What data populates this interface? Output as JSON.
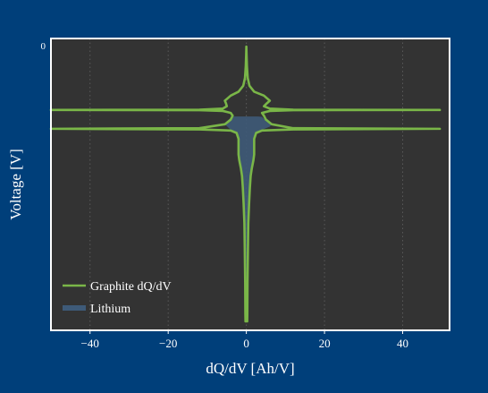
{
  "chart_data": {
    "type": "line",
    "title": "",
    "xlabel": "dQ/dV [Ah/V]",
    "ylabel": "Voltage [V]",
    "xlim": [
      -50,
      52
    ],
    "ylim": [
      0.7,
      0
    ],
    "x_ticks": [
      -40,
      -20,
      0,
      20,
      40
    ],
    "x_tick_labels": [
      "−40",
      "−20",
      "0",
      "20",
      "40"
    ],
    "y_ticks": [
      0
    ],
    "y_tick_labels": [
      "0"
    ],
    "grid": true,
    "legend_position": "lower-left",
    "colors": {
      "background": "#003f7a",
      "plot_area": "#333333",
      "frame": "#ffffff",
      "graphite": "#7ab648",
      "lithium": "#3e5a78",
      "grid": "#5a5a5a"
    },
    "series": [
      {
        "name": "Graphite dQ/dV",
        "kind": "line",
        "points": [
          [
            0,
            0.0
          ],
          [
            0.05,
            0.02
          ],
          [
            0.15,
            0.05
          ],
          [
            0.35,
            0.08
          ],
          [
            0.8,
            0.1
          ],
          [
            2,
            0.115
          ],
          [
            4.5,
            0.125
          ],
          [
            6,
            0.138
          ],
          [
            5.2,
            0.145
          ],
          [
            4.5,
            0.152
          ],
          [
            6,
            0.158
          ],
          [
            12,
            0.161
          ],
          [
            49.5,
            0.1615
          ],
          [
            12,
            0.162
          ],
          [
            6,
            0.164
          ],
          [
            4,
            0.169
          ],
          [
            4.5,
            0.176
          ],
          [
            5,
            0.186
          ],
          [
            6.5,
            0.198
          ],
          [
            12,
            0.208
          ],
          [
            49.5,
            0.2095
          ],
          [
            12,
            0.211
          ],
          [
            4,
            0.214
          ],
          [
            2.5,
            0.22
          ],
          [
            2,
            0.235
          ],
          [
            2,
            0.255
          ],
          [
            2,
            0.275
          ],
          [
            1.8,
            0.29
          ],
          [
            1.4,
            0.31
          ],
          [
            1.1,
            0.33
          ],
          [
            0.9,
            0.36
          ],
          [
            0.7,
            0.4
          ],
          [
            0.5,
            0.45
          ],
          [
            0.4,
            0.52
          ],
          [
            0.3,
            0.6
          ],
          [
            0.25,
            0.68
          ],
          [
            0.22,
            0.7
          ],
          [
            -0.22,
            0.7
          ],
          [
            -0.25,
            0.68
          ],
          [
            -0.3,
            0.6
          ],
          [
            -0.4,
            0.52
          ],
          [
            -0.5,
            0.45
          ],
          [
            -0.7,
            0.4
          ],
          [
            -0.9,
            0.36
          ],
          [
            -1.1,
            0.33
          ],
          [
            -1.4,
            0.31
          ],
          [
            -1.8,
            0.29
          ],
          [
            -2,
            0.275
          ],
          [
            -2,
            0.255
          ],
          [
            -2,
            0.235
          ],
          [
            -2.5,
            0.22
          ],
          [
            -4,
            0.214
          ],
          [
            -12,
            0.211
          ],
          [
            -50,
            0.2095
          ],
          [
            -12,
            0.208
          ],
          [
            -5.5,
            0.198
          ],
          [
            -4,
            0.186
          ],
          [
            -3.5,
            0.176
          ],
          [
            -4,
            0.169
          ],
          [
            -6,
            0.164
          ],
          [
            -12,
            0.162
          ],
          [
            -50,
            0.1615
          ],
          [
            -12,
            0.161
          ],
          [
            -6,
            0.158
          ],
          [
            -5,
            0.152
          ],
          [
            -5.2,
            0.145
          ],
          [
            -5.5,
            0.138
          ],
          [
            -4,
            0.125
          ],
          [
            -2,
            0.115
          ],
          [
            -0.8,
            0.1
          ],
          [
            -0.35,
            0.08
          ],
          [
            -0.15,
            0.05
          ],
          [
            -0.05,
            0.02
          ],
          [
            0,
            0.0
          ]
        ]
      },
      {
        "name": "Lithium",
        "kind": "area",
        "points": [
          [
            0,
            0.178
          ],
          [
            3,
            0.178
          ],
          [
            4,
            0.179
          ],
          [
            4.5,
            0.184
          ],
          [
            5,
            0.19
          ],
          [
            6.5,
            0.198
          ],
          [
            6,
            0.204
          ],
          [
            4,
            0.212
          ],
          [
            2.5,
            0.22
          ],
          [
            2,
            0.235
          ],
          [
            2,
            0.255
          ],
          [
            2,
            0.275
          ],
          [
            1.8,
            0.29
          ],
          [
            1.4,
            0.31
          ],
          [
            1.1,
            0.33
          ],
          [
            0.9,
            0.36
          ],
          [
            0.7,
            0.4
          ],
          [
            0.5,
            0.45
          ],
          [
            0.4,
            0.52
          ],
          [
            0.3,
            0.6
          ],
          [
            0.25,
            0.68
          ],
          [
            0.22,
            0.7
          ],
          [
            -0.22,
            0.7
          ],
          [
            -0.25,
            0.68
          ],
          [
            -0.3,
            0.6
          ],
          [
            -0.4,
            0.52
          ],
          [
            -0.5,
            0.45
          ],
          [
            -0.7,
            0.4
          ],
          [
            -0.9,
            0.36
          ],
          [
            -1.1,
            0.33
          ],
          [
            -1.4,
            0.31
          ],
          [
            -1.8,
            0.29
          ],
          [
            -2,
            0.275
          ],
          [
            -2,
            0.255
          ],
          [
            -2,
            0.235
          ],
          [
            -2.5,
            0.22
          ],
          [
            -4,
            0.212
          ],
          [
            -5.5,
            0.198
          ],
          [
            -4,
            0.186
          ],
          [
            -3.5,
            0.179
          ],
          [
            -3,
            0.178
          ],
          [
            0,
            0.178
          ]
        ]
      }
    ]
  }
}
